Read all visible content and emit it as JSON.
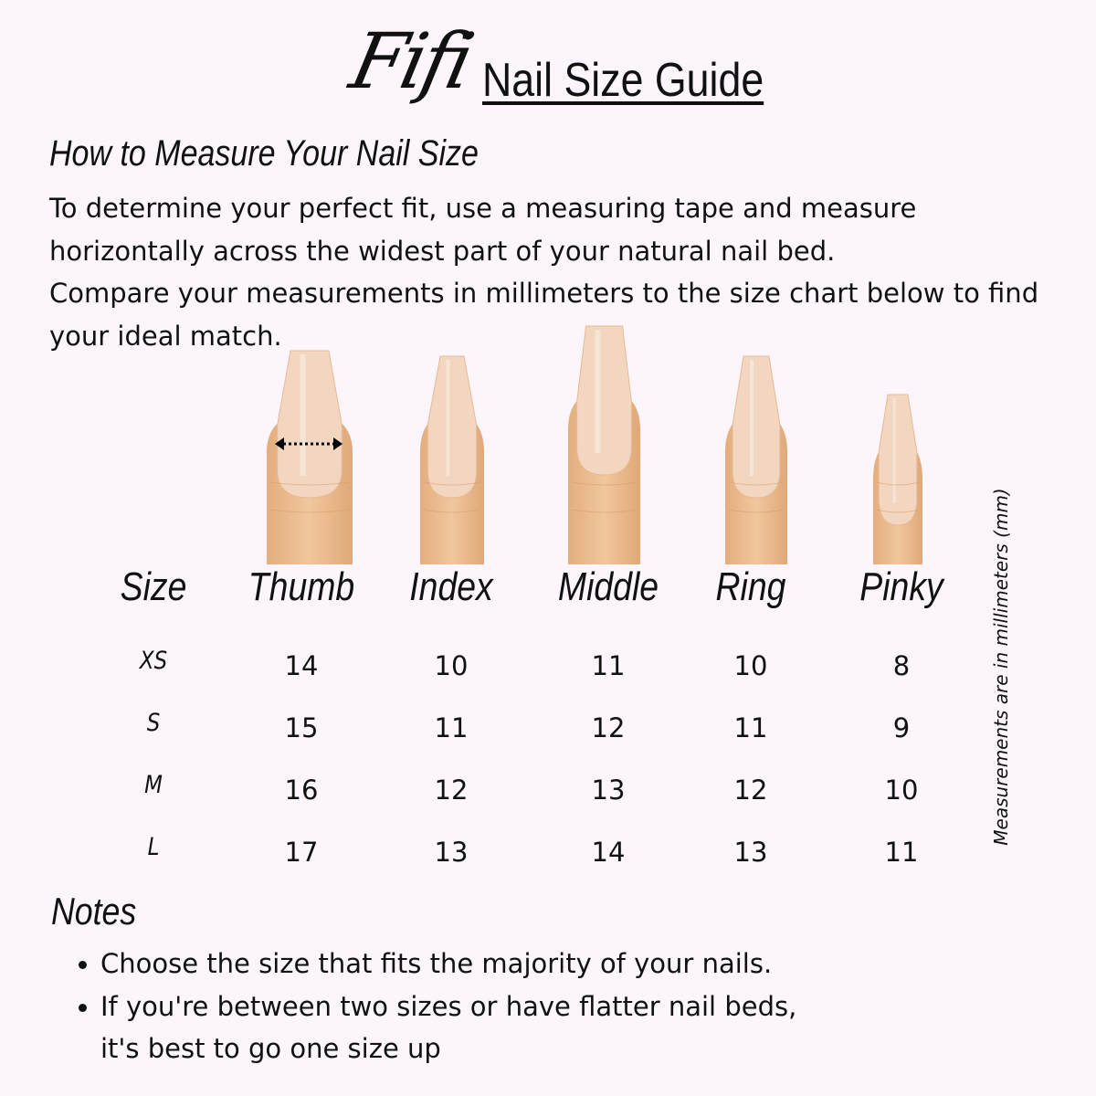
{
  "header": {
    "brand": "Fifi",
    "title": "Nail Size Guide"
  },
  "howto": {
    "heading": "How to Measure Your Nail Size",
    "paragraphs": [
      "To determine your perfect fit, use a measuring tape and measure horizontally across the widest part of your natural nail bed.",
      "Compare your measurements in millimeters to the size chart below to find your ideal match."
    ]
  },
  "table": {
    "columns": [
      "Size",
      "Thumb",
      "Index",
      "Middle",
      "Ring",
      "Pinky"
    ],
    "rows": [
      {
        "size": "XS",
        "values": [
          "14",
          "10",
          "11",
          "10",
          "8"
        ]
      },
      {
        "size": "S",
        "values": [
          "15",
          "11",
          "12",
          "11",
          "9"
        ]
      },
      {
        "size": "M",
        "values": [
          "16",
          "12",
          "13",
          "12",
          "10"
        ]
      },
      {
        "size": "L",
        "values": [
          "17",
          "13",
          "14",
          "13",
          "11"
        ]
      }
    ],
    "unit_note": "Measurements are in millimeters (mm)"
  },
  "fingers": {
    "measure_indicator": "double-arrow-dotted-icon",
    "skin_color": "#f0c79c",
    "nail_color": "#f2d6bf"
  },
  "notes": {
    "heading": "Notes",
    "items": [
      {
        "line1": "Choose the size that fits the majority of your nails.",
        "line2": ""
      },
      {
        "line1": "If you're between two sizes or have flatter nail beds,",
        "line2": "it's best to go one size up"
      }
    ]
  }
}
